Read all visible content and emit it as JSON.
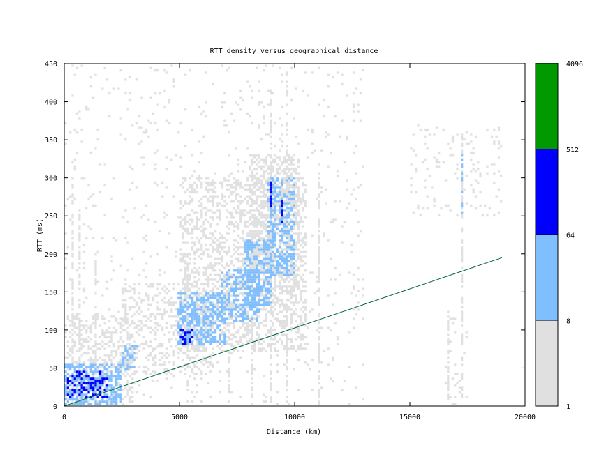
{
  "chart_data": {
    "type": "heatmap",
    "title": "RTT density versus geographical distance",
    "xlabel": "Distance (km)",
    "ylabel": "RTT (ms)",
    "xlim": [
      0,
      20000
    ],
    "ylim": [
      0,
      450
    ],
    "xticks": [
      "0",
      "5000",
      "10000",
      "15000",
      "20000"
    ],
    "yticks": [
      "0",
      "50",
      "100",
      "150",
      "200",
      "250",
      "300",
      "350",
      "400",
      "450"
    ],
    "colorbar": {
      "scale": "log2",
      "range": [
        1,
        4096
      ],
      "ticks": [
        "1",
        "8",
        "64",
        "512",
        "4096"
      ],
      "bands": [
        {
          "from": 1,
          "to": 8,
          "color": "#e0e0e0"
        },
        {
          "from": 8,
          "to": 64,
          "color": "#80bfff"
        },
        {
          "from": 64,
          "to": 512,
          "color": "#0000ff"
        },
        {
          "from": 512,
          "to": 4096,
          "color": "#009900"
        }
      ]
    },
    "reference_line": {
      "color": "#006633",
      "points": [
        [
          0,
          0
        ],
        [
          19000,
          195
        ]
      ]
    },
    "density_regions": [
      {
        "band": "light",
        "x": [
          0,
          13000
        ],
        "y": [
          0,
          450
        ],
        "fill": 0.04
      },
      {
        "band": "light",
        "x": [
          0,
          3000
        ],
        "y": [
          0,
          120
        ],
        "fill": 0.3
      },
      {
        "band": "light",
        "x": [
          2500,
          6500
        ],
        "y": [
          40,
          160
        ],
        "fill": 0.25
      },
      {
        "band": "light",
        "x": [
          5000,
          10500
        ],
        "y": [
          70,
          300
        ],
        "fill": 0.35
      },
      {
        "band": "light",
        "x": [
          8000,
          10200
        ],
        "y": [
          150,
          330
        ],
        "fill": 0.4
      },
      {
        "band": "light",
        "x": [
          15000,
          19000
        ],
        "y": [
          250,
          370
        ],
        "fill": 0.08
      },
      {
        "band": "light",
        "x": [
          16500,
          17500
        ],
        "y": [
          0,
          120
        ],
        "fill": 0.06
      },
      {
        "band": "mid",
        "x": [
          0,
          2500
        ],
        "y": [
          0,
          55
        ],
        "fill": 0.6
      },
      {
        "band": "mid",
        "x": [
          2500,
          3200
        ],
        "y": [
          45,
          80
        ],
        "fill": 0.4
      },
      {
        "band": "mid",
        "x": [
          4900,
          7000
        ],
        "y": [
          80,
          150
        ],
        "fill": 0.55
      },
      {
        "band": "mid",
        "x": [
          6800,
          8500
        ],
        "y": [
          110,
          180
        ],
        "fill": 0.45
      },
      {
        "band": "mid",
        "x": [
          7800,
          9000
        ],
        "y": [
          130,
          220
        ],
        "fill": 0.5
      },
      {
        "band": "mid",
        "x": [
          8800,
          10000
        ],
        "y": [
          170,
          300
        ],
        "fill": 0.45
      },
      {
        "band": "mid",
        "x": [
          17200,
          17300
        ],
        "y": [
          250,
          330
        ],
        "fill": 0.5
      },
      {
        "band": "dark",
        "x": [
          100,
          1900
        ],
        "y": [
          10,
          45
        ],
        "fill": 0.35
      },
      {
        "band": "dark",
        "x": [
          5000,
          5600
        ],
        "y": [
          80,
          100
        ],
        "fill": 0.35
      },
      {
        "band": "dark",
        "x": [
          8900,
          9000
        ],
        "y": [
          260,
          295
        ],
        "fill": 0.8
      },
      {
        "band": "dark",
        "x": [
          9400,
          9500
        ],
        "y": [
          240,
          270
        ],
        "fill": 0.7
      }
    ],
    "vertical_streaks": [
      {
        "x": 400,
        "y": [
          0,
          300
        ]
      },
      {
        "x": 700,
        "y": [
          0,
          260
        ]
      },
      {
        "x": 1400,
        "y": [
          0,
          200
        ]
      },
      {
        "x": 5400,
        "y": [
          0,
          200
        ]
      },
      {
        "x": 7200,
        "y": [
          0,
          210
        ]
      },
      {
        "x": 8200,
        "y": [
          0,
          230
        ]
      },
      {
        "x": 9000,
        "y": [
          0,
          420
        ]
      },
      {
        "x": 9700,
        "y": [
          0,
          440
        ]
      },
      {
        "x": 11100,
        "y": [
          0,
          320
        ]
      },
      {
        "x": 16700,
        "y": [
          0,
          140
        ]
      },
      {
        "x": 17300,
        "y": [
          0,
          360
        ]
      }
    ],
    "grid": false,
    "legend": "colorbar right"
  }
}
